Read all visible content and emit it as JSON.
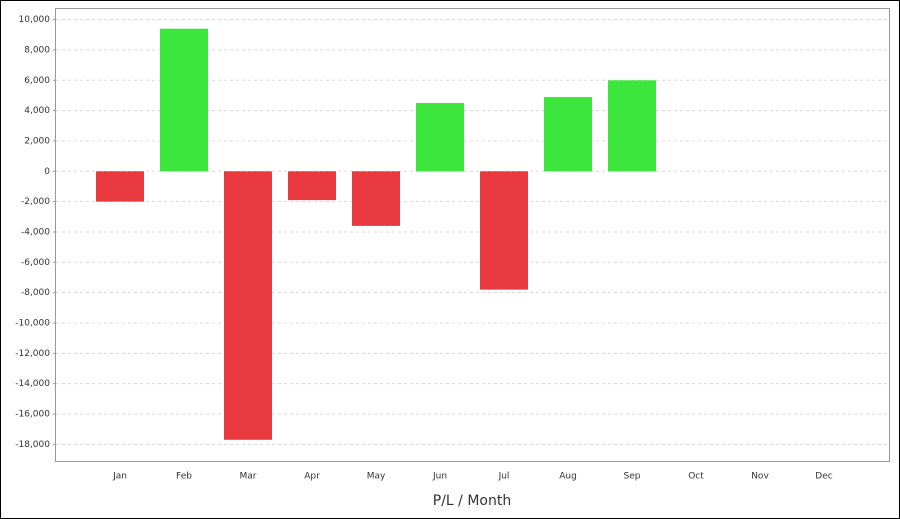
{
  "chart_data": {
    "type": "bar",
    "x_label": "P/L / Month",
    "categories": [
      "Jan",
      "Feb",
      "Mar",
      "Apr",
      "May",
      "Jun",
      "Jul",
      "Aug",
      "Sep",
      "Oct",
      "Nov",
      "Dec"
    ],
    "values": [
      -2000,
      9400,
      -17700,
      -1900,
      -3600,
      4500,
      -7800,
      4900,
      6000,
      null,
      null,
      null
    ],
    "colors": {
      "positive": "#3de63d",
      "negative": "#e8393f"
    },
    "ylim": [
      -19100,
      10700
    ],
    "yticks": [
      {
        "value": -18000,
        "label": "-18,000"
      },
      {
        "value": -16000,
        "label": "-16,000"
      },
      {
        "value": -14000,
        "label": "-14,000"
      },
      {
        "value": -12000,
        "label": "-12,000"
      },
      {
        "value": -10000,
        "label": "-10,000"
      },
      {
        "value": -8000,
        "label": "-8,000"
      },
      {
        "value": -6000,
        "label": "-6,000"
      },
      {
        "value": -4000,
        "label": "-4,000"
      },
      {
        "value": -2000,
        "label": "-2,000"
      },
      0,
      {
        "value": 2000,
        "label": "2,000"
      },
      {
        "value": 4000,
        "label": "4,000"
      },
      {
        "value": 6000,
        "label": "6,000"
      },
      {
        "value": 8000,
        "label": "8,000"
      },
      {
        "value": 10000,
        "label": "10,000"
      }
    ],
    "grid": true
  }
}
